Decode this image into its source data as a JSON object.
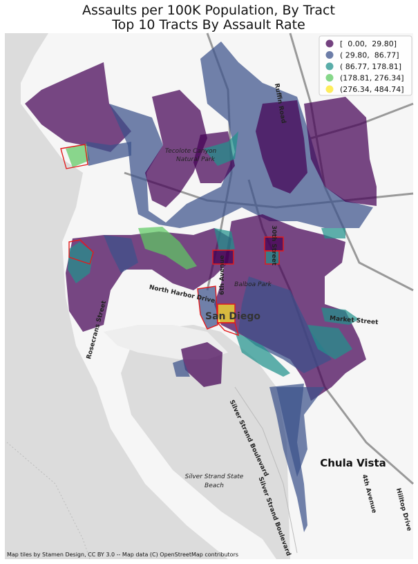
{
  "header": {
    "title": [
      "Assaults per 100K Population, By Tract",
      "Top 10 Tracts By Assault Rate"
    ]
  },
  "legend": [
    {
      "label": "[  0.00,  29.80]",
      "color": "#440154"
    },
    {
      "label": "( 29.80,  86.77]",
      "color": "#3b528b"
    },
    {
      "label": "( 86.77, 178.81]",
      "color": "#21918c"
    },
    {
      "label": "(178.81, 276.34]",
      "color": "#5ec962"
    },
    {
      "label": "(276.34, 484.74]",
      "color": "#fde725"
    }
  ],
  "highlight_color": "#e31a1c",
  "map_labels": [
    "Ruffin Road",
    "Tecolote Canyon",
    "Natural Park",
    "30th Street",
    "6th Avenue",
    "Balboa Park",
    "North Harbor Drive",
    "San Diego",
    "Market Street",
    "Rosecrans Street",
    "Silver Strand Boulevard",
    "Silver Strand Boulevard",
    "Silver Strand State",
    "Beach",
    "Chula Vista",
    "4th Avenue",
    "Hilltop Drive"
  ],
  "attribution": "Map tiles by Stamen Design, CC BY 3.0 -- Map data (C) OpenStreetMap contributors"
}
